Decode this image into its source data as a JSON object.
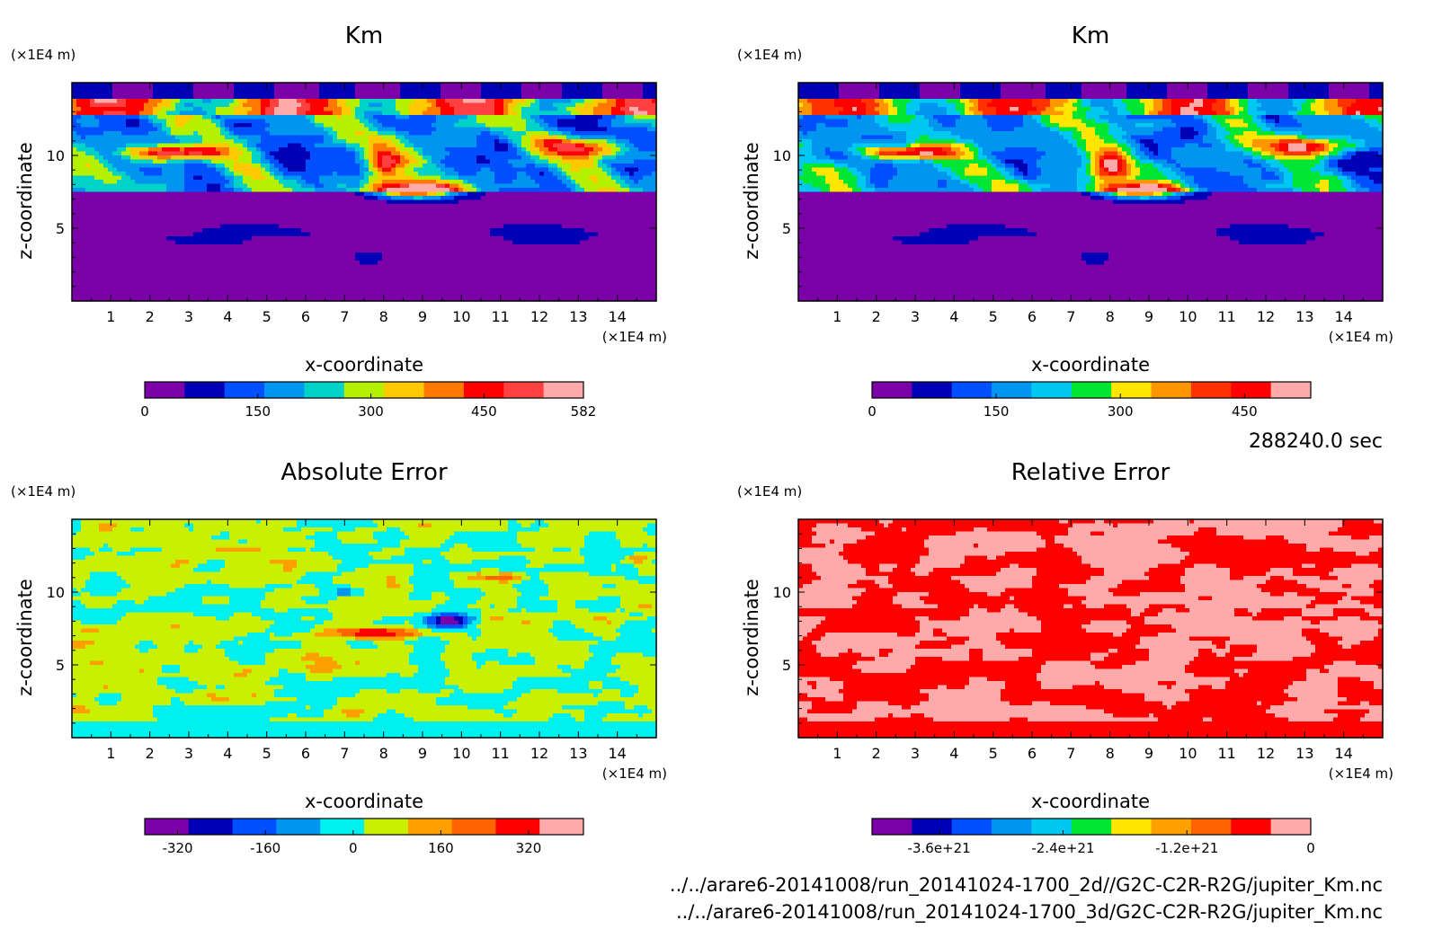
{
  "footer": {
    "time": "288240.0 sec",
    "path1": "../../arare6-20141008/run_20141024-1700_2d//G2C-C2R-R2G/jupiter_Km.nc",
    "path2": "../../arare6-20141008/run_20141024-1700_3d/G2C-C2R-R2G/jupiter_Km.nc"
  },
  "chart_data": [
    {
      "type": "heatmap",
      "title": "Km",
      "xlabel": "x-coordinate",
      "ylabel": "z-coordinate",
      "x_unit": "(×1E4 m)",
      "z_unit": "(×1E4 m)",
      "xlim": [
        0,
        15
      ],
      "zlim": [
        0,
        15
      ],
      "x_ticks": [
        "1",
        "2",
        "3",
        "4",
        "5",
        "6",
        "7",
        "8",
        "9",
        "10",
        "11",
        "12",
        "13",
        "14"
      ],
      "z_ticks": [
        "5",
        "10"
      ],
      "colorbar": {
        "min": 0,
        "max": 582,
        "tick_labels": [
          "0",
          "150",
          "300",
          "450",
          "582"
        ],
        "tick_values": [
          0,
          150,
          300,
          450,
          582
        ],
        "colors": [
          "#7b00a8",
          "#0000b4",
          "#0050ff",
          "#0096f0",
          "#00d2c8",
          "#b4f000",
          "#ffc800",
          "#ff7800",
          "#ff0000",
          "#ff4040",
          "#ffaaaa"
        ]
      }
    },
    {
      "type": "heatmap",
      "title": "Km",
      "xlabel": "x-coordinate",
      "ylabel": "z-coordinate",
      "x_unit": "(×1E4 m)",
      "z_unit": "(×1E4 m)",
      "xlim": [
        0,
        15
      ],
      "zlim": [
        0,
        15
      ],
      "x_ticks": [
        "1",
        "2",
        "3",
        "4",
        "5",
        "6",
        "7",
        "8",
        "9",
        "10",
        "11",
        "12",
        "13",
        "14"
      ],
      "z_ticks": [
        "5",
        "10"
      ],
      "colorbar": {
        "min": 0,
        "max": 530,
        "tick_labels": [
          "0",
          "150",
          "300",
          "450"
        ],
        "tick_values": [
          0,
          150,
          300,
          450
        ],
        "colors": [
          "#7b00a8",
          "#0000b4",
          "#0050ff",
          "#0096f0",
          "#00c8f0",
          "#00e632",
          "#ffe600",
          "#ff9600",
          "#ff3200",
          "#ff0000",
          "#ffaaaa"
        ]
      }
    },
    {
      "type": "heatmap",
      "title": "Absolute Error",
      "xlabel": "x-coordinate",
      "ylabel": "z-coordinate",
      "x_unit": "(×1E4 m)",
      "z_unit": "(×1E4 m)",
      "xlim": [
        0,
        15
      ],
      "zlim": [
        0,
        15
      ],
      "x_ticks": [
        "1",
        "2",
        "3",
        "4",
        "5",
        "6",
        "7",
        "8",
        "9",
        "10",
        "11",
        "12",
        "13",
        "14"
      ],
      "z_ticks": [
        "5",
        "10"
      ],
      "colorbar": {
        "min": -380,
        "max": 420,
        "tick_labels": [
          "-320",
          "-160",
          "0",
          "160",
          "320"
        ],
        "tick_values": [
          -320,
          -160,
          0,
          160,
          320
        ],
        "colors": [
          "#7b00a8",
          "#0000b4",
          "#0050ff",
          "#0096f0",
          "#00f0f0",
          "#c8f000",
          "#ffa000",
          "#ff6400",
          "#ff0000",
          "#ffaaaa"
        ]
      }
    },
    {
      "type": "heatmap",
      "title": "Relative Error",
      "xlabel": "x-coordinate",
      "ylabel": "z-coordinate",
      "x_unit": "(×1E4 m)",
      "z_unit": "(×1E4 m)",
      "xlim": [
        0,
        15
      ],
      "zlim": [
        0,
        15
      ],
      "x_ticks": [
        "1",
        "2",
        "3",
        "4",
        "5",
        "6",
        "7",
        "8",
        "9",
        "10",
        "11",
        "12",
        "13",
        "14"
      ],
      "z_ticks": [
        "5",
        "10"
      ],
      "colorbar": {
        "min": -4.25e+21,
        "max": 0,
        "tick_labels": [
          "-3.6e+21",
          "-2.4e+21",
          "-1.2e+21",
          "0"
        ],
        "tick_values": [
          -3.6e+21,
          -2.4e+21,
          -1.2e+21,
          0
        ],
        "colors": [
          "#7b00a8",
          "#0000b4",
          "#0050ff",
          "#0096f0",
          "#00c8f0",
          "#00e632",
          "#ffe600",
          "#ffa000",
          "#ff6400",
          "#ff0000",
          "#ffaaaa"
        ]
      }
    }
  ]
}
